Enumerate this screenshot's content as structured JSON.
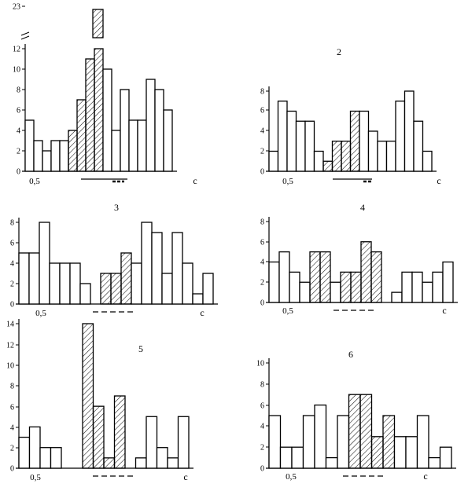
{
  "figure": {
    "panels": [
      {
        "id": "1",
        "label": "",
        "y_ticks": [
          "0",
          "2",
          "4",
          "6",
          "8",
          "10",
          "12",
          "23"
        ],
        "x_tick_label": "0,5",
        "x_unit_label": "c",
        "marks": {
          "line": true,
          "dashes": "short"
        }
      },
      {
        "id": "2",
        "label": "2",
        "y_ticks": [
          "0",
          "2",
          "4",
          "6",
          "8"
        ],
        "x_tick_label": "0,5",
        "x_unit_label": "c",
        "marks": {
          "line": true,
          "dashes": "short"
        }
      },
      {
        "id": "3",
        "label": "3",
        "y_ticks": [
          "0",
          "2",
          "4",
          "6",
          "8"
        ],
        "x_tick_label": "0,5",
        "x_unit_label": "c",
        "marks": {
          "line": false,
          "dashes": "long"
        }
      },
      {
        "id": "4",
        "label": "4",
        "y_ticks": [
          "0",
          "2",
          "4",
          "6",
          "8"
        ],
        "x_tick_label": "0,5",
        "x_unit_label": "c",
        "marks": {
          "line": false,
          "dashes": "long"
        }
      },
      {
        "id": "5",
        "label": "5",
        "y_ticks": [
          "0",
          "2",
          "4",
          "6",
          "8",
          "10",
          "12",
          "14"
        ],
        "x_tick_label": "0,5",
        "x_unit_label": "c",
        "marks": {
          "line": false,
          "dashes": "long"
        }
      },
      {
        "id": "6",
        "label": "6",
        "y_ticks": [
          "0",
          "2",
          "4",
          "6",
          "8",
          "10"
        ],
        "x_tick_label": "0,5",
        "x_unit_label": "c",
        "marks": {
          "line": false,
          "dashes": "long"
        }
      }
    ]
  },
  "chart_data": [
    {
      "type": "bar",
      "title": "",
      "ylim": [
        0,
        13
      ],
      "axis_break": {
        "after": 12,
        "top_label": "23"
      },
      "values": [
        5,
        3,
        2,
        3,
        3,
        4,
        7,
        11,
        12,
        10,
        4,
        8,
        5,
        5,
        9,
        8,
        6
      ],
      "hatched": [
        false,
        false,
        false,
        false,
        false,
        true,
        true,
        true,
        true,
        false,
        false,
        false,
        false,
        false,
        false,
        false,
        false
      ],
      "broken_bar": {
        "index": 8,
        "value": 23
      }
    },
    {
      "type": "bar",
      "title": "2",
      "ylim": [
        0,
        9
      ],
      "values": [
        2,
        7,
        6,
        5,
        5,
        2,
        1,
        3,
        3,
        6,
        6,
        4,
        3,
        3,
        7,
        9,
        5,
        2
      ],
      "hatched": [
        false,
        false,
        false,
        false,
        false,
        false,
        true,
        true,
        true,
        true,
        false,
        false,
        false,
        false,
        false,
        false,
        false,
        false
      ]
    },
    {
      "type": "bar",
      "title": "3",
      "ylim": [
        0,
        8.5
      ],
      "values": [
        5,
        5,
        8,
        4,
        4,
        4,
        2,
        0,
        3,
        3,
        5,
        4,
        8,
        7,
        3,
        7,
        4,
        1,
        3
      ],
      "hatched": [
        false,
        false,
        false,
        false,
        false,
        false,
        false,
        false,
        true,
        true,
        true,
        false,
        false,
        false,
        false,
        false,
        false,
        false,
        false
      ]
    },
    {
      "type": "bar",
      "title": "4",
      "ylim": [
        0,
        8
      ],
      "values": [
        4,
        5,
        3,
        2,
        5,
        5,
        2,
        3,
        3,
        6,
        5,
        0,
        1,
        3,
        3,
        2,
        3,
        4
      ],
      "hatched": [
        false,
        false,
        false,
        false,
        true,
        true,
        false,
        true,
        true,
        true,
        true,
        false,
        false,
        false,
        false,
        false,
        false,
        false
      ]
    },
    {
      "type": "bar",
      "title": "5",
      "ylim": [
        0,
        14
      ],
      "values": [
        3,
        4,
        2,
        2,
        0,
        0,
        14,
        6,
        1,
        7,
        0,
        1,
        5,
        2,
        1,
        5
      ],
      "hatched": [
        false,
        false,
        false,
        false,
        false,
        false,
        true,
        true,
        true,
        true,
        false,
        false,
        false,
        false,
        false,
        false
      ]
    },
    {
      "type": "bar",
      "title": "6",
      "ylim": [
        0,
        10
      ],
      "values": [
        5,
        2,
        2,
        5,
        6,
        1,
        5,
        7,
        7,
        3,
        5,
        3,
        3,
        5,
        1,
        2
      ],
      "hatched": [
        false,
        false,
        false,
        false,
        false,
        false,
        false,
        true,
        true,
        true,
        true,
        false,
        false,
        false,
        false,
        false
      ]
    }
  ]
}
